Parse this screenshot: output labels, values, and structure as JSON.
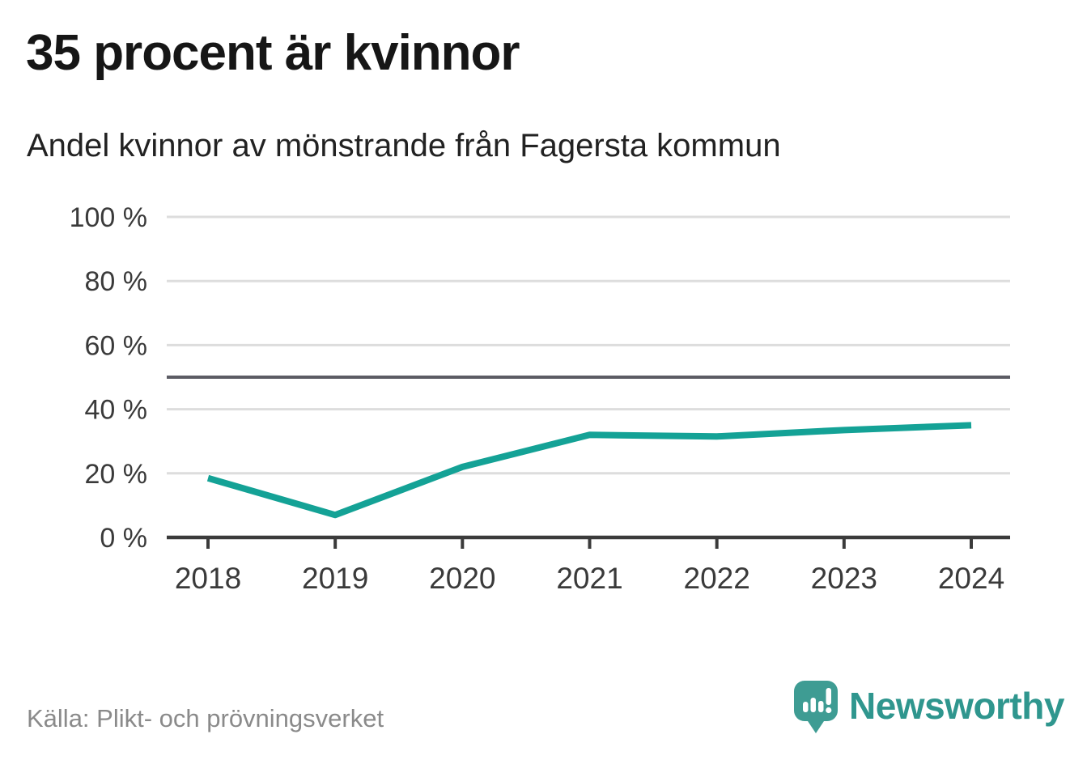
{
  "header": {
    "title": "35 procent är kvinnor",
    "subtitle": "Andel kvinnor av mönstrande från Fagersta kommun"
  },
  "footer": {
    "source": "Källa: Plikt- och prövningsverket",
    "brand": "Newsworthy",
    "logo_icon": "speech-bubble-with-bar-chart-and-exclamation"
  },
  "colors": {
    "line": "#14a296",
    "grid": "#dddddd",
    "axis": "#3b3b3b",
    "reference_line": "#5c5c64",
    "tick_text": "#3a3a3a",
    "muted_text": "#8a8a8a",
    "brand_teal": "#3e9c93",
    "brand_text": "#2f968e"
  },
  "chart_data": {
    "type": "line",
    "title": "35 procent är kvinnor",
    "subtitle": "Andel kvinnor av mönstrande från Fagersta kommun",
    "x": [
      2018,
      2019,
      2020,
      2021,
      2022,
      2023,
      2024
    ],
    "series": [
      {
        "name": "Andel kvinnor av mönstrande",
        "values": [
          18.5,
          7,
          22,
          32,
          31.5,
          33.5,
          35
        ]
      }
    ],
    "unit": "%",
    "xlabel": "",
    "ylabel": "",
    "ylim": [
      0,
      100
    ],
    "yticks": [
      0,
      20,
      40,
      60,
      80,
      100
    ],
    "ytick_format": "{v} %",
    "reference_line": 50,
    "grid": "horizontal",
    "legend": "none"
  }
}
